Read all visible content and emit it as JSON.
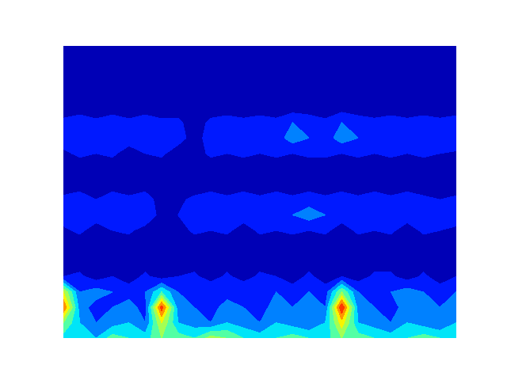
{
  "chart_data": {
    "type": "contour",
    "tick_labels": false,
    "x": [
      0,
      1,
      2,
      3,
      4,
      5,
      6,
      7,
      8,
      9,
      10,
      11,
      12,
      13,
      14,
      15,
      16,
      17,
      18,
      19,
      20,
      21,
      22,
      23,
      24
    ],
    "y": [
      0,
      1,
      2,
      3,
      4,
      5,
      6,
      7,
      8,
      9,
      10,
      11,
      12,
      13,
      14,
      15,
      16,
      17,
      18,
      19
    ],
    "xlim": [
      0,
      24
    ],
    "ylim": [
      0,
      19
    ],
    "levels": [
      0,
      0.1,
      0.2,
      0.3,
      0.4,
      0.5,
      0.6,
      0.7,
      0.8,
      0.9,
      1.0
    ],
    "cells": [
      [
        0.35,
        0.4,
        0.3,
        0.45,
        0.4,
        0.35,
        0.5,
        0.45,
        0.4,
        0.55,
        0.5,
        0.4,
        0.35,
        0.4,
        0.45,
        0.4,
        0.35,
        0.5,
        0.45,
        0.4,
        0.35,
        0.4,
        0.45,
        0.4,
        0.35
      ],
      [
        0.5,
        0.3,
        0.2,
        0.25,
        0.3,
        0.2,
        0.6,
        0.3,
        0.25,
        0.2,
        0.3,
        0.25,
        0.2,
        0.3,
        0.25,
        0.2,
        0.3,
        0.65,
        0.3,
        0.25,
        0.2,
        0.3,
        0.25,
        0.2,
        0.3
      ],
      [
        0.8,
        0.25,
        0.15,
        0.2,
        0.25,
        0.15,
        0.85,
        0.25,
        0.2,
        0.15,
        0.25,
        0.2,
        0.15,
        0.25,
        0.2,
        0.25,
        0.2,
        0.9,
        0.25,
        0.2,
        0.15,
        0.25,
        0.3,
        0.2,
        0.25
      ],
      [
        0.6,
        0.2,
        0.25,
        0.2,
        0.15,
        0.2,
        0.4,
        0.2,
        0.15,
        0.2,
        0.15,
        0.2,
        0.15,
        0.2,
        0.15,
        0.2,
        0.15,
        0.5,
        0.2,
        0.15,
        0.2,
        0.25,
        0.2,
        0.15,
        0.2
      ],
      [
        0.1,
        0.12,
        0.05,
        0.1,
        0.05,
        0.12,
        0.05,
        0.1,
        0.12,
        0.05,
        0.12,
        0.05,
        0.12,
        0.1,
        0.05,
        0.12,
        0.05,
        0.1,
        0.05,
        0.12,
        0.12,
        0.05,
        0.12,
        0.05,
        0.1
      ],
      [
        0.05,
        0.05,
        0.08,
        0.05,
        0.05,
        0.05,
        0.08,
        0.05,
        0.05,
        0.05,
        0.05,
        0.08,
        0.05,
        0.05,
        0.05,
        0.05,
        0.08,
        0.05,
        0.05,
        0.05,
        0.05,
        0.08,
        0.05,
        0.05,
        0.05
      ],
      [
        0.04,
        0.04,
        0.04,
        0.04,
        0.04,
        0.04,
        0.04,
        0.04,
        0.04,
        0.04,
        0.04,
        0.04,
        0.04,
        0.04,
        0.04,
        0.04,
        0.04,
        0.04,
        0.04,
        0.04,
        0.04,
        0.04,
        0.04,
        0.04,
        0.04
      ],
      [
        0.08,
        0.12,
        0.05,
        0.1,
        0.12,
        0.05,
        0.04,
        0.05,
        0.12,
        0.1,
        0.12,
        0.05,
        0.12,
        0.1,
        0.12,
        0.1,
        0.12,
        0.05,
        0.12,
        0.1,
        0.12,
        0.05,
        0.12,
        0.1,
        0.08
      ],
      [
        0.15,
        0.2,
        0.15,
        0.2,
        0.1,
        0.2,
        0.05,
        0.1,
        0.15,
        0.1,
        0.2,
        0.15,
        0.2,
        0.15,
        0.2,
        0.25,
        0.2,
        0.15,
        0.2,
        0.15,
        0.2,
        0.15,
        0.2,
        0.15,
        0.15
      ],
      [
        0.12,
        0.15,
        0.1,
        0.15,
        0.12,
        0.15,
        0.05,
        0.08,
        0.12,
        0.15,
        0.12,
        0.15,
        0.12,
        0.15,
        0.12,
        0.15,
        0.12,
        0.15,
        0.12,
        0.15,
        0.12,
        0.15,
        0.12,
        0.1,
        0.12
      ],
      [
        0.05,
        0.05,
        0.04,
        0.05,
        0.04,
        0.05,
        0.04,
        0.05,
        0.04,
        0.05,
        0.04,
        0.05,
        0.04,
        0.05,
        0.04,
        0.05,
        0.04,
        0.05,
        0.04,
        0.05,
        0.04,
        0.05,
        0.04,
        0.05,
        0.04
      ],
      [
        0.04,
        0.04,
        0.04,
        0.04,
        0.04,
        0.04,
        0.04,
        0.04,
        0.04,
        0.04,
        0.04,
        0.04,
        0.04,
        0.04,
        0.04,
        0.04,
        0.04,
        0.04,
        0.04,
        0.04,
        0.04,
        0.04,
        0.04,
        0.04,
        0.04
      ],
      [
        0.08,
        0.12,
        0.1,
        0.12,
        0.05,
        0.1,
        0.12,
        0.04,
        0.05,
        0.12,
        0.1,
        0.12,
        0.1,
        0.12,
        0.1,
        0.12,
        0.12,
        0.1,
        0.12,
        0.1,
        0.12,
        0.1,
        0.12,
        0.1,
        0.08
      ],
      [
        0.15,
        0.2,
        0.15,
        0.2,
        0.15,
        0.2,
        0.12,
        0.15,
        0.05,
        0.15,
        0.2,
        0.15,
        0.2,
        0.15,
        0.25,
        0.2,
        0.15,
        0.25,
        0.2,
        0.15,
        0.2,
        0.15,
        0.2,
        0.15,
        0.2
      ],
      [
        0.12,
        0.15,
        0.12,
        0.15,
        0.12,
        0.15,
        0.12,
        0.12,
        0.05,
        0.12,
        0.15,
        0.12,
        0.15,
        0.12,
        0.2,
        0.15,
        0.12,
        0.2,
        0.15,
        0.12,
        0.15,
        0.12,
        0.15,
        0.12,
        0.15
      ],
      [
        0.05,
        0.05,
        0.04,
        0.05,
        0.04,
        0.05,
        0.04,
        0.05,
        0.04,
        0.05,
        0.04,
        0.05,
        0.04,
        0.05,
        0.04,
        0.05,
        0.04,
        0.05,
        0.04,
        0.05,
        0.04,
        0.05,
        0.04,
        0.05,
        0.04
      ],
      [
        0.04,
        0.04,
        0.04,
        0.04,
        0.04,
        0.04,
        0.04,
        0.04,
        0.04,
        0.04,
        0.04,
        0.04,
        0.04,
        0.04,
        0.04,
        0.04,
        0.04,
        0.04,
        0.04,
        0.04,
        0.04,
        0.04,
        0.04,
        0.04,
        0.04
      ],
      [
        0.04,
        0.04,
        0.04,
        0.04,
        0.04,
        0.04,
        0.04,
        0.04,
        0.04,
        0.04,
        0.04,
        0.04,
        0.04,
        0.04,
        0.04,
        0.04,
        0.04,
        0.04,
        0.04,
        0.04,
        0.04,
        0.04,
        0.04,
        0.04,
        0.04
      ],
      [
        0.04,
        0.04,
        0.04,
        0.04,
        0.04,
        0.04,
        0.04,
        0.04,
        0.04,
        0.04,
        0.04,
        0.04,
        0.04,
        0.04,
        0.04,
        0.04,
        0.04,
        0.04,
        0.04,
        0.04,
        0.04,
        0.04,
        0.04,
        0.04,
        0.04
      ],
      [
        0.04,
        0.04,
        0.04,
        0.04,
        0.04,
        0.04,
        0.04,
        0.04,
        0.04,
        0.04,
        0.04,
        0.04,
        0.04,
        0.04,
        0.04,
        0.04,
        0.04,
        0.04,
        0.04,
        0.04,
        0.04,
        0.04,
        0.04,
        0.04,
        0.04
      ]
    ]
  }
}
